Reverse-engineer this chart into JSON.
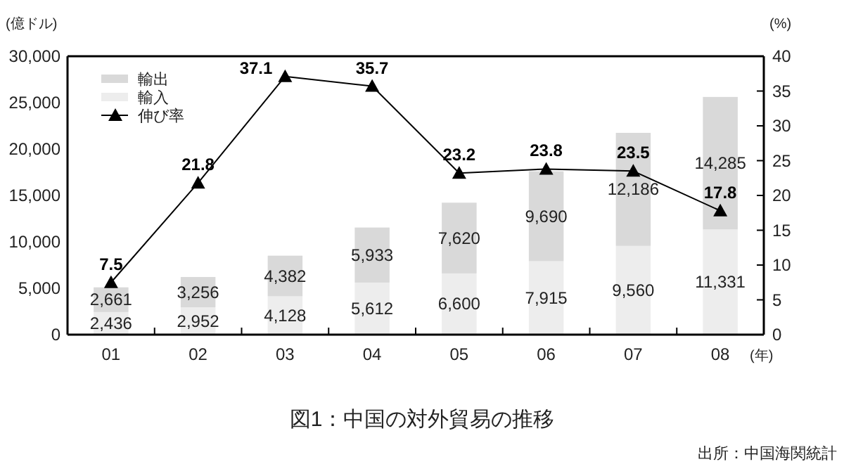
{
  "chart_data": {
    "type": "bar",
    "title": "図1：中国の対外貿易の推移",
    "xlabel": "(年)",
    "ylabel": "(億ドル)",
    "y2label": "(%)",
    "categories": [
      "01",
      "02",
      "03",
      "04",
      "05",
      "06",
      "07",
      "08"
    ],
    "stacked": true,
    "legend": "top left",
    "series": [
      {
        "name": "輸入",
        "color": "#ededed",
        "values": [
          2436,
          2952,
          4128,
          5612,
          6600,
          7915,
          9560,
          11331
        ],
        "value_labels": [
          "2,436",
          "2,952",
          "4,128",
          "5,612",
          "6,600",
          "7,915",
          "9,560",
          "11,331"
        ]
      },
      {
        "name": "輸出",
        "color": "#d9d9d9",
        "values": [
          2661,
          3256,
          4382,
          5933,
          7620,
          9690,
          12186,
          14285
        ],
        "value_labels": [
          "2,661",
          "3,256",
          "4,382",
          "5,933",
          "7,620",
          "9,690",
          "12,186",
          "14,285"
        ]
      },
      {
        "name": "伸び率",
        "type": "line",
        "axis": "y2",
        "color": "#000000",
        "marker": "triangle",
        "values": [
          7.5,
          21.8,
          37.1,
          35.7,
          23.2,
          23.8,
          23.5,
          17.8
        ],
        "value_labels": [
          "7.5",
          "21.8",
          "37.1",
          "35.7",
          "23.2",
          "23.8",
          "23.5",
          "17.8"
        ]
      }
    ],
    "ylim": [
      0,
      30000
    ],
    "yticks": [
      {
        "value": 0,
        "label": "0"
      },
      {
        "value": 5000,
        "label": "5,000"
      },
      {
        "value": 10000,
        "label": "10,000"
      },
      {
        "value": 15000,
        "label": "15,000"
      },
      {
        "value": 20000,
        "label": "20,000"
      },
      {
        "value": 25000,
        "label": "25,000"
      },
      {
        "value": 30000,
        "label": "30,000"
      }
    ],
    "y2lim": [
      0,
      40
    ],
    "y2ticks": [
      0,
      5,
      10,
      15,
      20,
      25,
      30,
      35,
      40
    ],
    "annotations": [
      "出所：中国海関統計"
    ]
  }
}
